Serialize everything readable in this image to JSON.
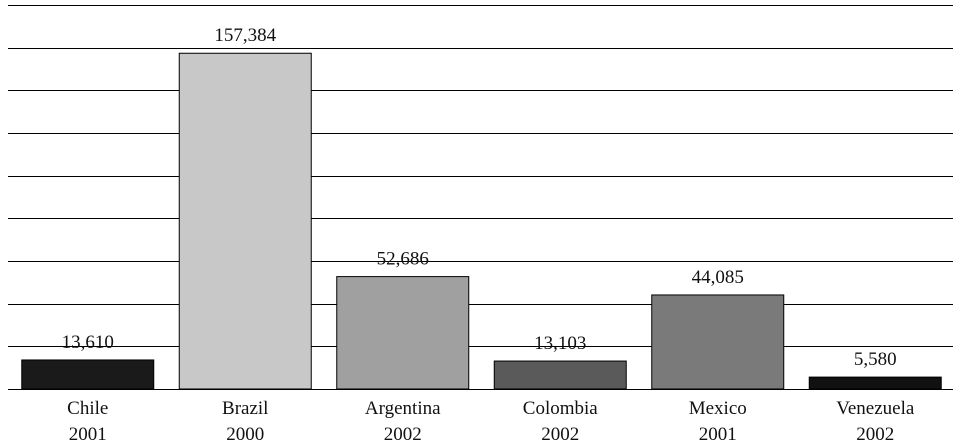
{
  "chart_data": {
    "type": "bar",
    "categories": [
      {
        "name": "Chile",
        "year": "2001"
      },
      {
        "name": "Brazil",
        "year": "2000"
      },
      {
        "name": "Argentina",
        "year": "2002"
      },
      {
        "name": "Colombia",
        "year": "2002"
      },
      {
        "name": "Mexico",
        "year": "2001"
      },
      {
        "name": "Venezuela",
        "year": "2002"
      }
    ],
    "values": [
      13610,
      157384,
      52686,
      13103,
      44085,
      5580
    ],
    "value_labels": [
      "13,610",
      "157,384",
      "52,686",
      "13,103",
      "44,085",
      "5,580"
    ],
    "bar_colors": [
      "#1a1a1a",
      "#c8c8c8",
      "#a0a0a0",
      "#5a5a5a",
      "#7a7a7a",
      "#111111"
    ],
    "title": "",
    "xlabel": "",
    "ylabel": "",
    "ylim": [
      0,
      180000
    ],
    "grid": true,
    "legend": "none"
  }
}
